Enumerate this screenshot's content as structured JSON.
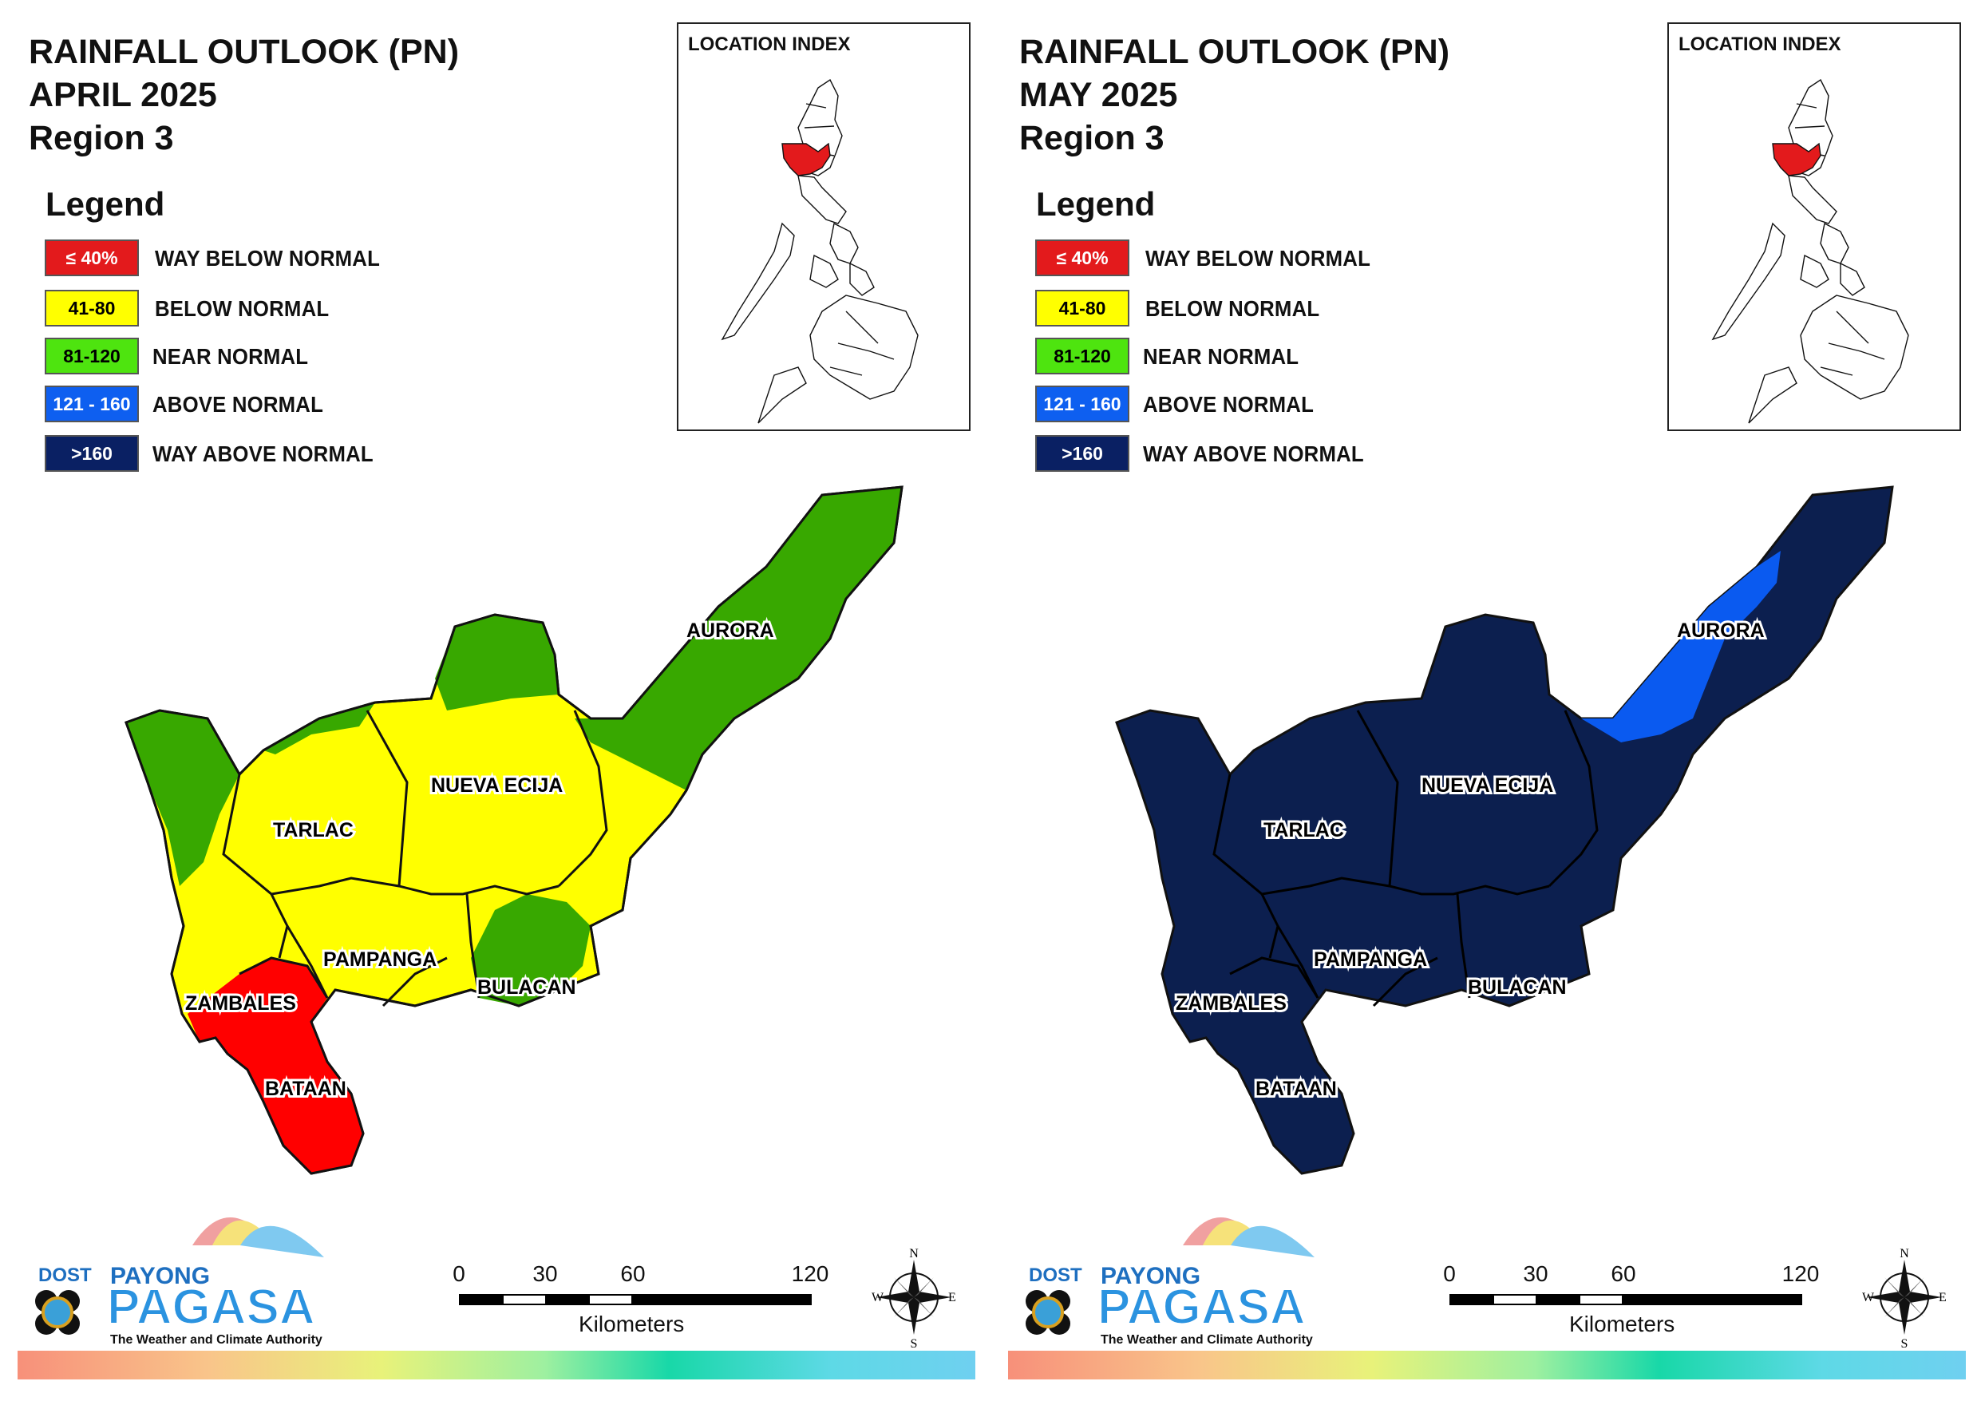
{
  "panels": [
    {
      "title": [
        "RAINFALL OUTLOOK (PN)",
        "APRIL 2025",
        "Region 3"
      ],
      "legend_title": "Legend",
      "legend": [
        {
          "range": "≤ 40%",
          "label": "WAY BELOW NORMAL",
          "color": "#e31a1c",
          "text_color": "#ffffff"
        },
        {
          "range": "41-80",
          "label": "BELOW NORMAL",
          "color": "#ffff00",
          "text_color": "#000000"
        },
        {
          "range": "81-120",
          "label": "NEAR NORMAL",
          "color": "#4ee40f",
          "text_color": "#000000"
        },
        {
          "range": "121 - 160",
          "label": "ABOVE NORMAL",
          "color": "#0e5ff0",
          "text_color": "#ffffff"
        },
        {
          "range": ">160",
          "label": "WAY ABOVE NORMAL",
          "color": "#0a2063",
          "text_color": "#ffffff"
        }
      ],
      "inset_title": "LOCATION INDEX",
      "provinces": [
        "AURORA",
        "NUEVA ECIJA",
        "TARLAC",
        "PAMPANGA",
        "BULACAN",
        "ZAMBALES",
        "BATAAN"
      ],
      "scale": {
        "ticks": [
          "0",
          "30",
          "60",
          "120"
        ],
        "unit": "Kilometers"
      },
      "compass": {
        "n": "N",
        "s": "S",
        "e": "E",
        "w": "W"
      },
      "logo": {
        "dost": "DOST",
        "payong": "PAYONG",
        "pagasa": "PAGASA",
        "tagline": "The Weather and Climate Authority"
      },
      "map_colors": {
        "green": "#38a800",
        "yellow": "#ffff00",
        "red": "#ff0000"
      }
    },
    {
      "title": [
        "RAINFALL OUTLOOK (PN)",
        "MAY 2025",
        "Region 3"
      ],
      "legend_title": "Legend",
      "legend": [
        {
          "range": "≤ 40%",
          "label": "WAY BELOW NORMAL",
          "color": "#e31a1c",
          "text_color": "#ffffff"
        },
        {
          "range": "41-80",
          "label": "BELOW NORMAL",
          "color": "#ffff00",
          "text_color": "#000000"
        },
        {
          "range": "81-120",
          "label": "NEAR NORMAL",
          "color": "#4ee40f",
          "text_color": "#000000"
        },
        {
          "range": "121 - 160",
          "label": "ABOVE NORMAL",
          "color": "#0e5ff0",
          "text_color": "#ffffff"
        },
        {
          "range": ">160",
          "label": "WAY ABOVE NORMAL",
          "color": "#0a2063",
          "text_color": "#ffffff"
        }
      ],
      "inset_title": "LOCATION INDEX",
      "provinces": [
        "AURORA",
        "NUEVA ECIJA",
        "TARLAC",
        "PAMPANGA",
        "BULACAN",
        "ZAMBALES",
        "BATAAN"
      ],
      "scale": {
        "ticks": [
          "0",
          "30",
          "60",
          "120"
        ],
        "unit": "Kilometers"
      },
      "compass": {
        "n": "N",
        "s": "S",
        "e": "E",
        "w": "W"
      },
      "logo": {
        "dost": "DOST",
        "payong": "PAYONG",
        "pagasa": "PAGASA",
        "tagline": "The Weather and Climate Authority"
      },
      "map_colors": {
        "base": "#0c1f4f",
        "blue": "#0a5af0"
      }
    }
  ]
}
